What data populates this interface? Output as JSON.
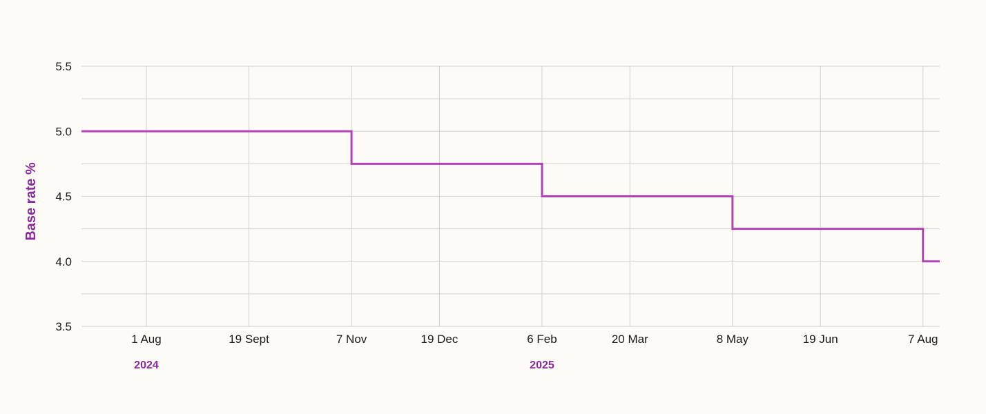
{
  "chart_data": {
    "type": "line",
    "step": true,
    "title": "",
    "xlabel": "",
    "ylabel": "Base rate %",
    "ylim": [
      3.5,
      5.5
    ],
    "y_ticks": [
      "5.5",
      "5.0",
      "4.5",
      "4.0",
      "3.5"
    ],
    "y_tick_values": [
      5.5,
      5.0,
      4.5,
      4.0,
      3.5
    ],
    "y_minor_values": [
      5.25,
      4.75,
      4.25,
      3.75
    ],
    "x_range": [
      "2024-07-01",
      "2025-08-15"
    ],
    "x_ticks": [
      {
        "label": "1 Aug",
        "date": "2024-08-01"
      },
      {
        "label": "19 Sept",
        "date": "2024-09-19"
      },
      {
        "label": "7 Nov",
        "date": "2024-11-07"
      },
      {
        "label": "19 Dec",
        "date": "2024-12-19"
      },
      {
        "label": "6 Feb",
        "date": "2025-02-06"
      },
      {
        "label": "20 Mar",
        "date": "2025-03-20"
      },
      {
        "label": "8 May",
        "date": "2025-05-08"
      },
      {
        "label": "19 Jun",
        "date": "2025-06-19"
      },
      {
        "label": "7 Aug",
        "date": "2025-08-07"
      }
    ],
    "year_labels": [
      {
        "label": "2024",
        "date": "2024-08-01"
      },
      {
        "label": "2025",
        "date": "2025-02-06"
      }
    ],
    "grid": true,
    "series": [
      {
        "color": "#b441b8",
        "points": [
          {
            "x": "2024-07-01",
            "y": 5.0
          },
          {
            "x": "2024-11-07",
            "y": 4.75
          },
          {
            "x": "2025-02-06",
            "y": 4.5
          },
          {
            "x": "2025-05-08",
            "y": 4.25
          },
          {
            "x": "2025-08-07",
            "y": 4.0
          },
          {
            "x": "2025-08-15",
            "y": 4.0
          }
        ]
      }
    ],
    "colors": {
      "line": "#b441b8",
      "axis_label": "#8a2a9c",
      "year_label": "#8a2a9c",
      "grid": "#cfcfcf",
      "background": "#fdfbf5"
    }
  }
}
